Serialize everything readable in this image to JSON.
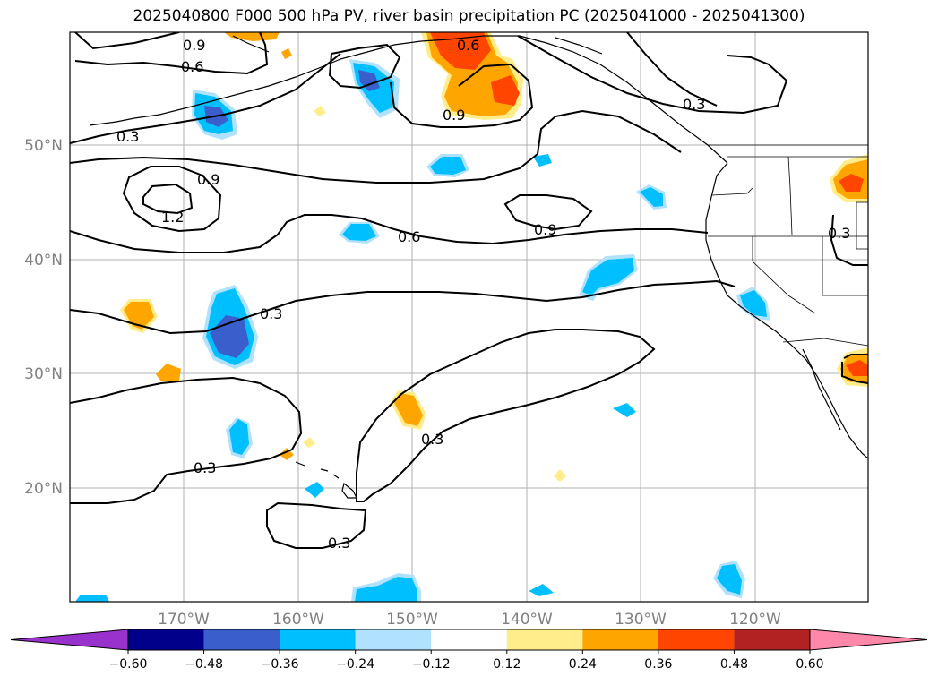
{
  "title": "2025040800 F000 500 hPa PV, river basin precipitation PC (2025041000 - 2025041300)",
  "lat_labels": [
    "50°N",
    "40°N",
    "30°N",
    "20°N"
  ],
  "lon_labels": [
    "170°W",
    "160°W",
    "150°W",
    "140°W",
    "130°W",
    "120°W"
  ],
  "contour_labels": [
    "0.9",
    "0.6",
    "0.6",
    "0.9",
    "0.3",
    "0.3",
    "0.9",
    "1.2",
    "0.6",
    "0.9",
    "0.3",
    "0.3",
    "0.3",
    "0.3",
    "0.3"
  ],
  "colorbar": {
    "tick_labels": [
      "−0.60",
      "−0.48",
      "−0.36",
      "−0.24",
      "−0.12",
      "0.12",
      "0.24",
      "0.36",
      "0.48",
      "0.60"
    ],
    "colors": [
      "#9932cc",
      "#00008b",
      "#3a5fcd",
      "#00bfff",
      "#b0e2ff",
      "#ffffff",
      "#ffec8b",
      "#ffa500",
      "#ff4500",
      "#b22222",
      "#ff88aa"
    ]
  },
  "shade_colors": {
    "light_blue": "#b0e2ff",
    "blue": "#00bfff",
    "royal_blue": "#3a5fcd",
    "yellow": "#ffec8b",
    "orange": "#ffa500",
    "red_orange": "#ff4500"
  }
}
